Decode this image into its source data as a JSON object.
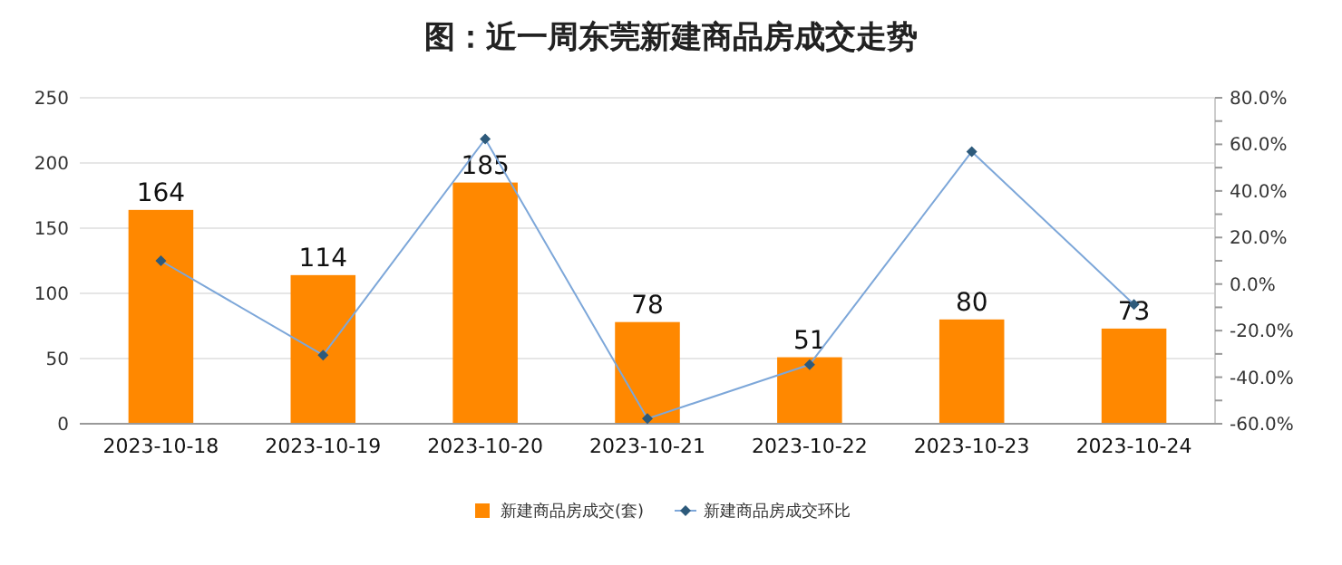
{
  "chart_data": {
    "type": "bar",
    "title": "图：近一周东莞新建商品房成交走势",
    "categories": [
      "2023-10-18",
      "2023-10-19",
      "2023-10-20",
      "2023-10-21",
      "2023-10-22",
      "2023-10-23",
      "2023-10-24"
    ],
    "series": [
      {
        "name": "新建商品房成交(套)",
        "color": "#ff8800",
        "values": [
          164,
          114,
          185,
          78,
          51,
          80,
          73
        ],
        "value_labels": [
          "164",
          "114",
          "185",
          "78",
          "51",
          "80",
          "73"
        ]
      },
      {
        "name": "新建商品房成交环比",
        "type": "line",
        "axis": "y2",
        "color": "#7da7d9",
        "values": [
          10,
          -30.5,
          62.3,
          -57.8,
          -34.6,
          56.9,
          -8.8
        ]
      }
    ],
    "ylim": [
      0,
      250
    ],
    "yticks": [
      0,
      50,
      100,
      150,
      200,
      250
    ],
    "y2lim": [
      -60,
      80
    ],
    "y2ticks": [
      {
        "value": -60,
        "label": "-60.0%"
      },
      {
        "value": -50,
        "label": null
      },
      {
        "value": -40,
        "label": "-40.0%"
      },
      {
        "value": -30,
        "label": null
      },
      {
        "value": -20,
        "label": "-20.0%"
      },
      {
        "value": -10,
        "label": null
      },
      {
        "value": 0,
        "label": "0.0%"
      },
      {
        "value": 10,
        "label": null
      },
      {
        "value": 20,
        "label": "20.0%"
      },
      {
        "value": 30,
        "label": null
      },
      {
        "value": 40,
        "label": "40.0%"
      },
      {
        "value": 50,
        "label": null
      },
      {
        "value": 60,
        "label": "60.0%"
      },
      {
        "value": 70,
        "label": null
      },
      {
        "value": 80,
        "label": "80.0%"
      }
    ],
    "grid": "y",
    "legend": "bottom",
    "marker": "diamond",
    "line_style": "solid"
  }
}
